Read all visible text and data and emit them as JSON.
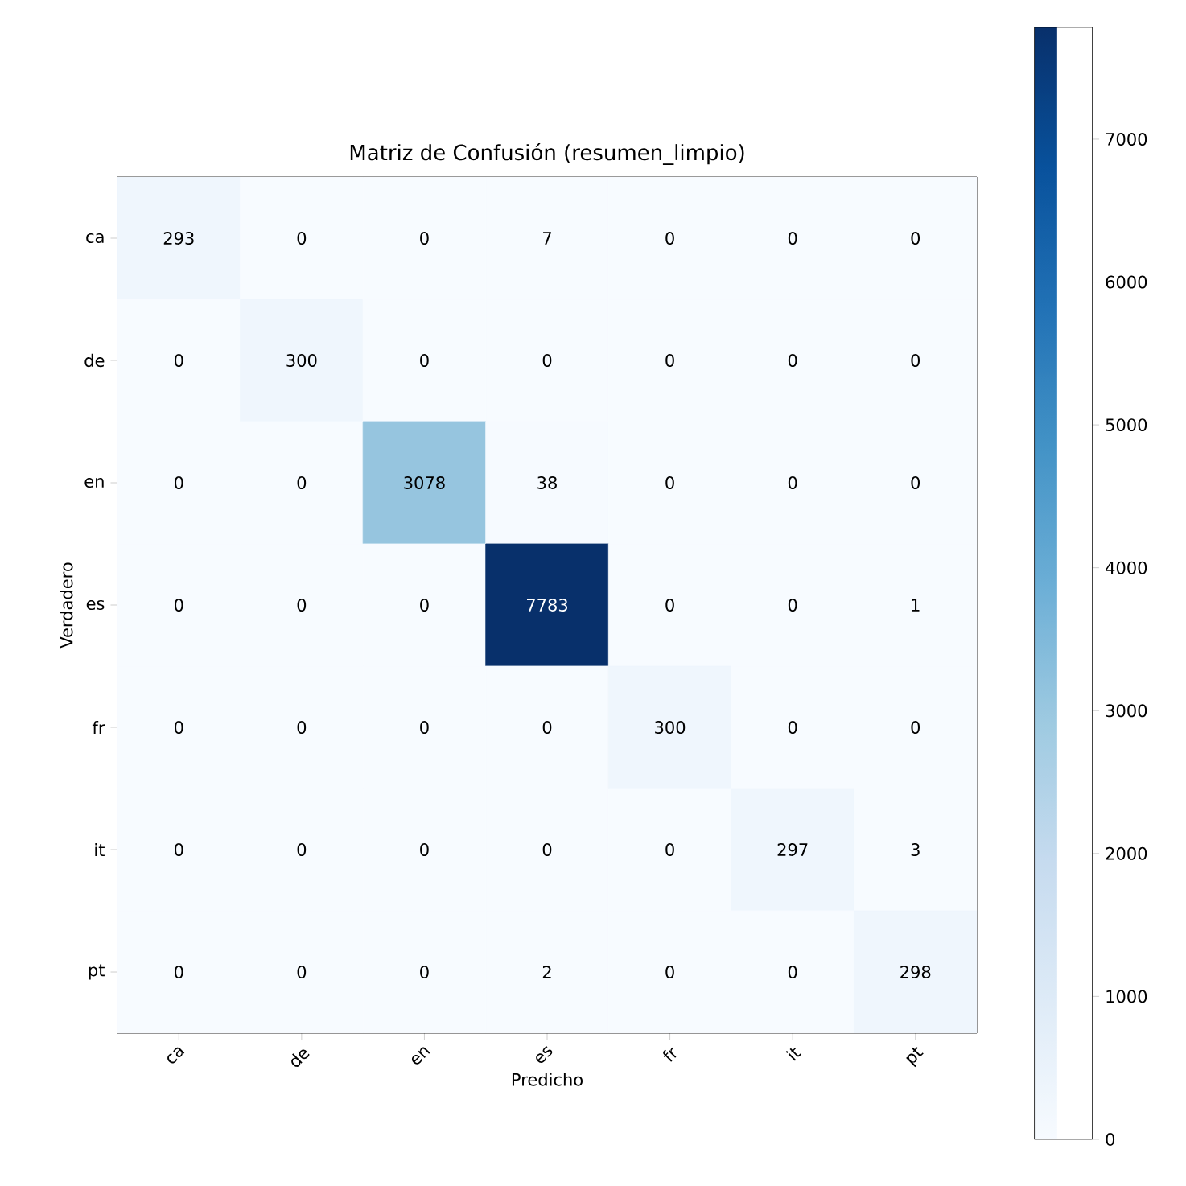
{
  "chart_data": {
    "type": "heatmap",
    "title": "Matriz de Confusión (resumen_limpio)",
    "xlabel": "Predicho",
    "ylabel": "Verdadero",
    "categories": [
      "ca",
      "de",
      "en",
      "es",
      "fr",
      "it",
      "pt"
    ],
    "y_categories": [
      "ca",
      "de",
      "en",
      "es",
      "fr",
      "it",
      "pt"
    ],
    "cells": [
      [
        293,
        0,
        0,
        7,
        0,
        0,
        0
      ],
      [
        0,
        300,
        0,
        0,
        0,
        0,
        0
      ],
      [
        0,
        0,
        3078,
        38,
        0,
        0,
        0
      ],
      [
        0,
        0,
        0,
        7783,
        0,
        0,
        1
      ],
      [
        0,
        0,
        0,
        0,
        300,
        0,
        0
      ],
      [
        0,
        0,
        0,
        0,
        0,
        297,
        3
      ],
      [
        0,
        0,
        0,
        2,
        0,
        0,
        298
      ]
    ],
    "clim": [
      0,
      7783
    ],
    "cticks": [
      0,
      1000,
      2000,
      3000,
      4000,
      5000,
      6000,
      7000
    ],
    "data_labels": true
  }
}
